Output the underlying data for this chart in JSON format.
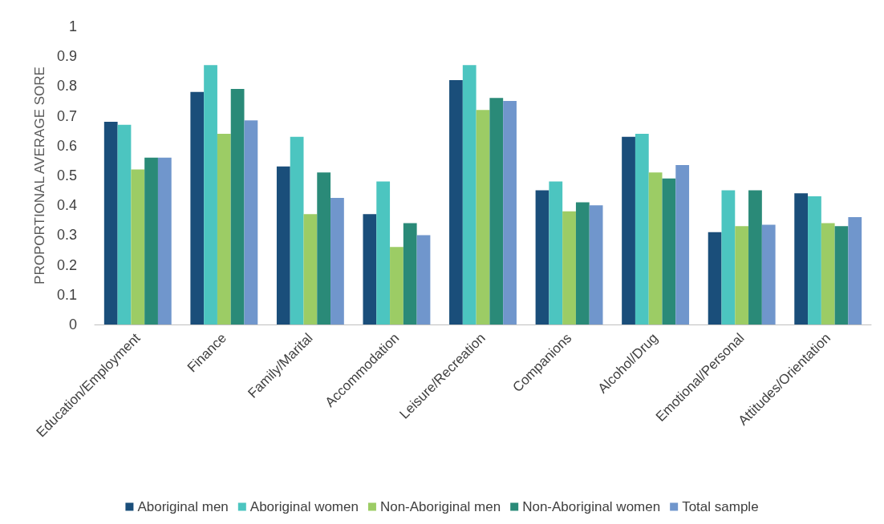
{
  "chart_data": {
    "type": "bar",
    "ylabel": "PROPORTIONAL AVERAGE SORE",
    "categories": [
      "Education/Employment",
      "Finance",
      "Family/Marital",
      "Accommodation",
      "Leisure/Recreation",
      "Companions",
      "Alcohol/Drug",
      "Emotional/Personal",
      "Attitudes/Orientation"
    ],
    "series": [
      {
        "name": "Aboriginal men",
        "color": "#1a4e7a",
        "values": [
          0.68,
          0.78,
          0.53,
          0.37,
          0.82,
          0.45,
          0.63,
          0.31,
          0.44
        ]
      },
      {
        "name": "Aboriginal women",
        "color": "#4cc5c0",
        "values": [
          0.67,
          0.87,
          0.63,
          0.48,
          0.87,
          0.48,
          0.64,
          0.45,
          0.43
        ]
      },
      {
        "name": "Non-Aboriginal men",
        "color": "#9ccc65",
        "values": [
          0.52,
          0.64,
          0.37,
          0.26,
          0.72,
          0.38,
          0.51,
          0.33,
          0.34
        ]
      },
      {
        "name": "Non-Aboriginal women",
        "color": "#2a8a78",
        "values": [
          0.56,
          0.79,
          0.51,
          0.34,
          0.76,
          0.41,
          0.49,
          0.45,
          0.33
        ]
      },
      {
        "name": "Total sample",
        "color": "#7096cc",
        "values": [
          0.56,
          0.685,
          0.425,
          0.3,
          0.75,
          0.4,
          0.535,
          0.335,
          0.36
        ]
      }
    ],
    "ylim": [
      0,
      1
    ],
    "yticks": [
      0,
      0.1,
      0.2,
      0.3,
      0.4,
      0.5,
      0.6,
      0.7,
      0.8,
      0.9,
      1
    ],
    "grid": false,
    "legend": "bottom"
  }
}
